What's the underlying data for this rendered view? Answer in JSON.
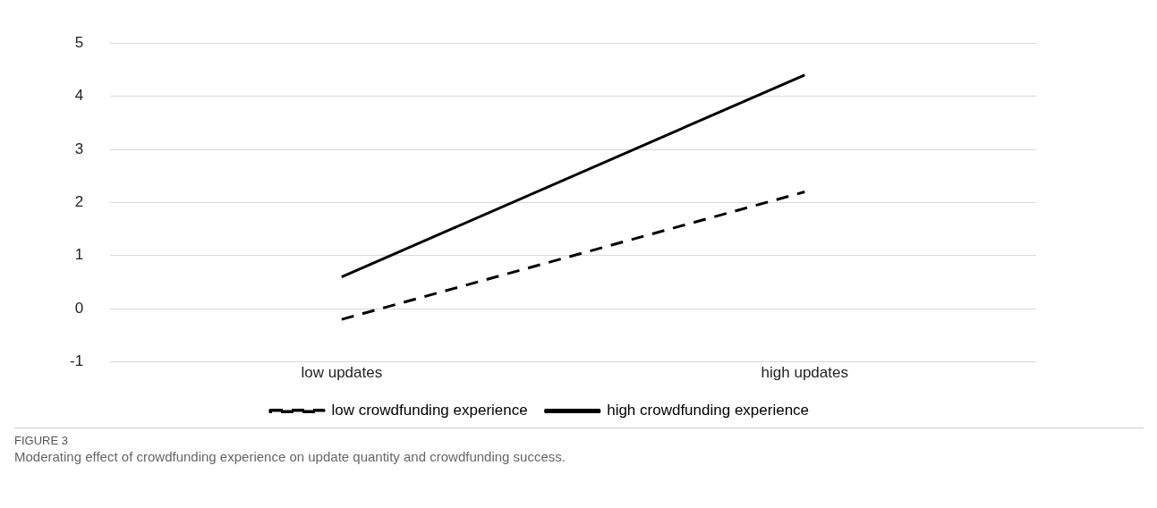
{
  "chart_data": {
    "type": "line",
    "title": "FIGURE 3",
    "annotations": [
      "Moderating effect of crowdfunding experience on update quantity and crowdfunding success."
    ],
    "categories": [
      "low updates",
      "high updates"
    ],
    "series": [
      {
        "name": "low crowdfunding experience",
        "color": "#000000",
        "values": [
          -0.2,
          2.2
        ],
        "line_style": "dashed"
      },
      {
        "name": "high crowdfunding experience",
        "color": "#000000",
        "values": [
          0.6,
          4.4
        ],
        "line_style": "solid"
      }
    ],
    "ylim": [
      -1,
      5
    ],
    "yticks": [
      -1,
      0,
      1,
      2,
      3,
      4,
      5
    ],
    "grid": "y",
    "legend": "bottom",
    "marker": "none"
  }
}
